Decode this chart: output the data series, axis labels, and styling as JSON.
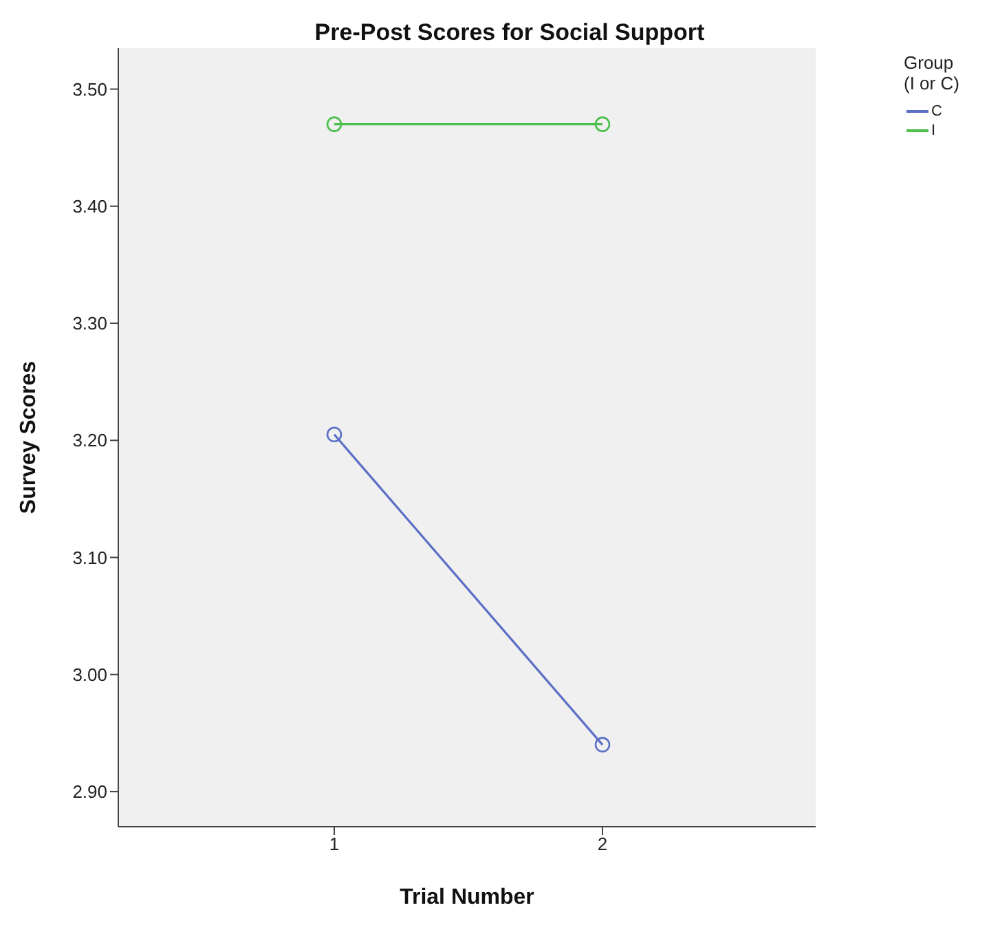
{
  "chart_data": {
    "type": "line",
    "title": "Pre-Post Scores for Social Support",
    "xlabel": "Trial Number",
    "ylabel": "Survey Scores",
    "legend_title": "Group\n(I or C)",
    "categories": [
      "1",
      "2"
    ],
    "series": [
      {
        "name": "C",
        "color": "#5b6fc6",
        "values": [
          3.205,
          2.94
        ]
      },
      {
        "name": "I",
        "color": "#4cbf4c",
        "values": [
          3.47,
          3.47
        ]
      }
    ],
    "ylim": [
      2.87,
      3.535
    ],
    "yticks": [
      {
        "value": 2.9,
        "label": "2.90"
      },
      {
        "value": 3.0,
        "label": "3.00"
      },
      {
        "value": 3.1,
        "label": "3.10"
      },
      {
        "value": 3.2,
        "label": "3.20"
      },
      {
        "value": 3.3,
        "label": "3.30"
      },
      {
        "value": 3.4,
        "label": "3.40"
      },
      {
        "value": 3.5,
        "label": "3.50"
      }
    ],
    "grid": false,
    "legend": "top right",
    "marker": "circle",
    "line_style": "solid"
  }
}
